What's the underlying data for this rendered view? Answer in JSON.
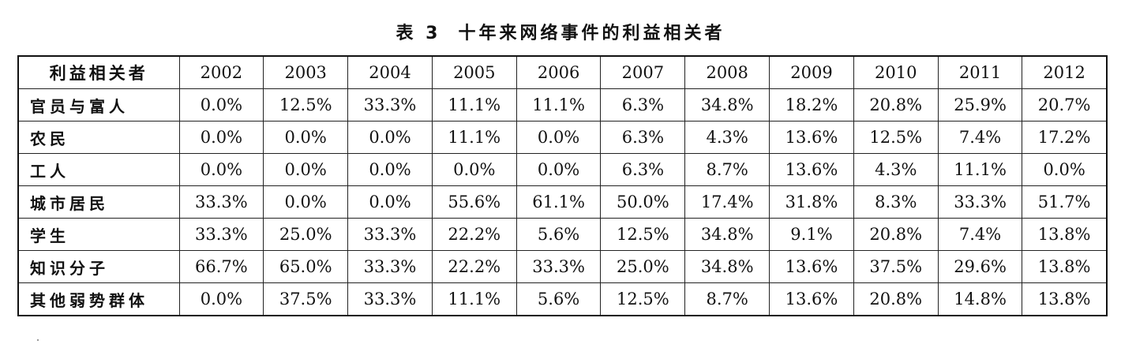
{
  "caption": {
    "number": "表 3",
    "title": "十年来网络事件的利益相关者"
  },
  "table": {
    "corner_header": "利益相关者",
    "years": [
      "2002",
      "2003",
      "2004",
      "2005",
      "2006",
      "2007",
      "2008",
      "2009",
      "2010",
      "2011",
      "2012"
    ],
    "rows": [
      {
        "stakeholder": "官员与富人",
        "values": [
          "0.0%",
          "12.5%",
          "33.3%",
          "11.1%",
          "11.1%",
          "6.3%",
          "34.8%",
          "18.2%",
          "20.8%",
          "25.9%",
          "20.7%"
        ]
      },
      {
        "stakeholder": "农民",
        "values": [
          "0.0%",
          "0.0%",
          "0.0%",
          "11.1%",
          "0.0%",
          "6.3%",
          "4.3%",
          "13.6%",
          "12.5%",
          "7.4%",
          "17.2%"
        ]
      },
      {
        "stakeholder": "工人",
        "values": [
          "0.0%",
          "0.0%",
          "0.0%",
          "0.0%",
          "0.0%",
          "6.3%",
          "8.7%",
          "13.6%",
          "4.3%",
          "11.1%",
          "0.0%"
        ]
      },
      {
        "stakeholder": "城市居民",
        "values": [
          "33.3%",
          "0.0%",
          "0.0%",
          "55.6%",
          "61.1%",
          "50.0%",
          "17.4%",
          "31.8%",
          "8.3%",
          "33.3%",
          "51.7%"
        ]
      },
      {
        "stakeholder": "学生",
        "values": [
          "33.3%",
          "25.0%",
          "33.3%",
          "22.2%",
          "5.6%",
          "12.5%",
          "34.8%",
          "9.1%",
          "20.8%",
          "7.4%",
          "13.8%"
        ]
      },
      {
        "stakeholder": "知识分子",
        "values": [
          "66.7%",
          "65.0%",
          "33.3%",
          "22.2%",
          "33.3%",
          "25.0%",
          "34.8%",
          "13.6%",
          "37.5%",
          "29.6%",
          "13.8%"
        ]
      },
      {
        "stakeholder": "其他弱势群体",
        "values": [
          "0.0%",
          "37.5%",
          "33.3%",
          "11.1%",
          "5.6%",
          "12.5%",
          "8.7%",
          "13.6%",
          "20.8%",
          "14.8%",
          "13.8%"
        ]
      }
    ]
  }
}
